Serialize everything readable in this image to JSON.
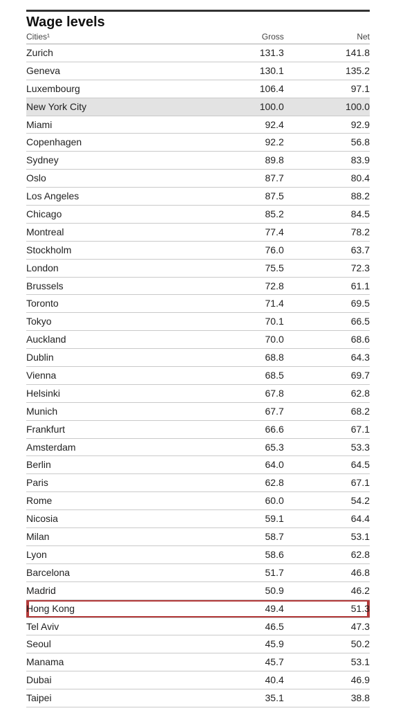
{
  "title": "Wage levels",
  "columns": {
    "city": "Cities¹",
    "gross": "Gross",
    "net": "Net"
  },
  "highlight_border_color": "#b33a3a",
  "baseline_bg_color": "#e3e3e3",
  "rows": [
    {
      "city": "Zurich",
      "gross": "131.3",
      "net": "141.8"
    },
    {
      "city": "Geneva",
      "gross": "130.1",
      "net": "135.2"
    },
    {
      "city": "Luxembourg",
      "gross": "106.4",
      "net": "97.1"
    },
    {
      "city": "New York City",
      "gross": "100.0",
      "net": "100.0",
      "baseline": true
    },
    {
      "city": "Miami",
      "gross": "92.4",
      "net": "92.9"
    },
    {
      "city": "Copenhagen",
      "gross": "92.2",
      "net": "56.8"
    },
    {
      "city": "Sydney",
      "gross": "89.8",
      "net": "83.9"
    },
    {
      "city": "Oslo",
      "gross": "87.7",
      "net": "80.4"
    },
    {
      "city": "Los Angeles",
      "gross": "87.5",
      "net": "88.2"
    },
    {
      "city": "Chicago",
      "gross": "85.2",
      "net": "84.5"
    },
    {
      "city": "Montreal",
      "gross": "77.4",
      "net": "78.2"
    },
    {
      "city": "Stockholm",
      "gross": "76.0",
      "net": "63.7"
    },
    {
      "city": "London",
      "gross": "75.5",
      "net": "72.3"
    },
    {
      "city": "Brussels",
      "gross": "72.8",
      "net": "61.1"
    },
    {
      "city": "Toronto",
      "gross": "71.4",
      "net": "69.5"
    },
    {
      "city": "Tokyo",
      "gross": "70.1",
      "net": "66.5"
    },
    {
      "city": "Auckland",
      "gross": "70.0",
      "net": "68.6"
    },
    {
      "city": "Dublin",
      "gross": "68.8",
      "net": "64.3"
    },
    {
      "city": "Vienna",
      "gross": "68.5",
      "net": "69.7"
    },
    {
      "city": "Helsinki",
      "gross": "67.8",
      "net": "62.8"
    },
    {
      "city": "Munich",
      "gross": "67.7",
      "net": "68.2"
    },
    {
      "city": "Frankfurt",
      "gross": "66.6",
      "net": "67.1"
    },
    {
      "city": "Amsterdam",
      "gross": "65.3",
      "net": "53.3"
    },
    {
      "city": "Berlin",
      "gross": "64.0",
      "net": "64.5"
    },
    {
      "city": "Paris",
      "gross": "62.8",
      "net": "67.1"
    },
    {
      "city": "Rome",
      "gross": "60.0",
      "net": "54.2"
    },
    {
      "city": "Nicosia",
      "gross": "59.1",
      "net": "64.4"
    },
    {
      "city": "Milan",
      "gross": "58.7",
      "net": "53.1"
    },
    {
      "city": "Lyon",
      "gross": "58.6",
      "net": "62.8"
    },
    {
      "city": "Barcelona",
      "gross": "51.7",
      "net": "46.8"
    },
    {
      "city": "Madrid",
      "gross": "50.9",
      "net": "46.2"
    },
    {
      "city": "Hong Kong",
      "gross": "49.4",
      "net": "51.3",
      "highlight": true
    },
    {
      "city": "Tel Aviv",
      "gross": "46.5",
      "net": "47.3"
    },
    {
      "city": "Seoul",
      "gross": "45.9",
      "net": "50.2"
    },
    {
      "city": "Manama",
      "gross": "45.7",
      "net": "53.1"
    },
    {
      "city": "Dubai",
      "gross": "40.4",
      "net": "46.9"
    },
    {
      "city": "Taipei",
      "gross": "35.1",
      "net": "38.8"
    }
  ]
}
